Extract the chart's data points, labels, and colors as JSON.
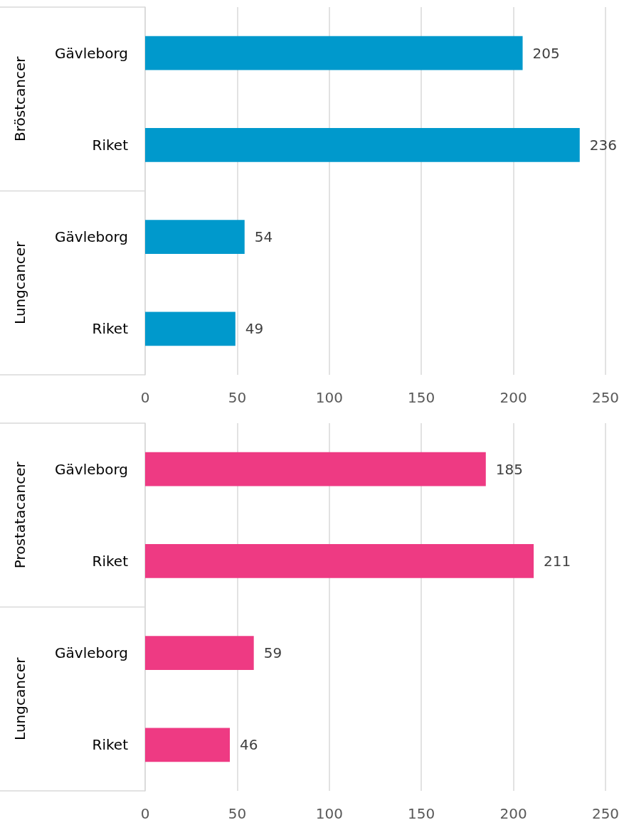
{
  "chart_data": [
    {
      "type": "bar",
      "orientation": "horizontal",
      "categories": [
        "Gävleborg",
        "Riket",
        "Gävleborg",
        "Riket"
      ],
      "values": [
        205,
        236,
        54,
        49
      ],
      "color": "#0099cc",
      "xlim": [
        0,
        250
      ],
      "xticks": [
        0,
        50,
        100,
        150,
        200,
        250
      ],
      "grid": "x",
      "data_labels": true,
      "annotations": [
        "Bröstcancer",
        "Lungcancer"
      ]
    },
    {
      "type": "bar",
      "orientation": "horizontal",
      "categories": [
        "Gävleborg",
        "Riket",
        "Gävleborg",
        "Riket"
      ],
      "values": [
        185,
        211,
        59,
        46
      ],
      "color": "#ee3a83",
      "xlim": [
        0,
        250
      ],
      "xticks": [
        0,
        50,
        100,
        150,
        200,
        250
      ],
      "grid": "x",
      "data_labels": true,
      "annotations": [
        "Prostatacancer",
        "Lungcancer"
      ]
    }
  ]
}
